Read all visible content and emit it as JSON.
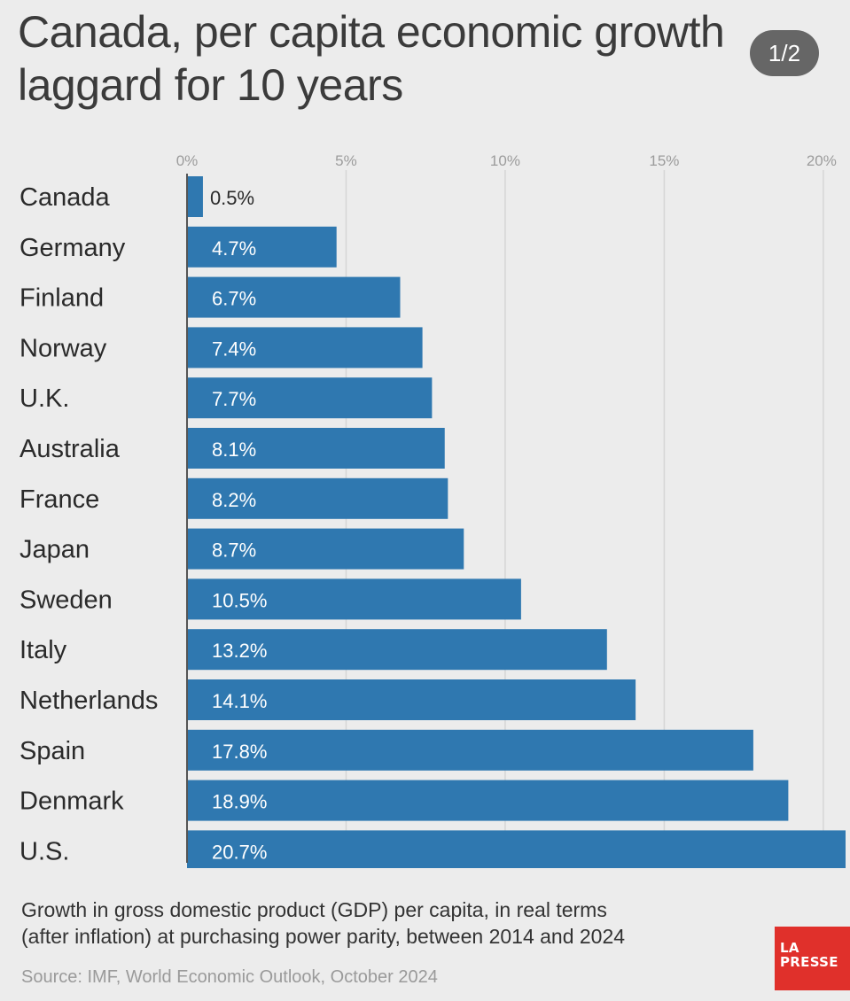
{
  "title": "Canada, per capita economic growth laggard for 10 years",
  "page_indicator": "1/2",
  "footnote": "Growth in gross domestic product (GDP) per capita, in real terms\n(after inflation) at purchasing power parity, between 2014 and 2024",
  "source": "Source: IMF, World Economic Outlook, October 2024",
  "logo": {
    "line1": "LA",
    "line2": "PRESSE"
  },
  "colors": {
    "bar": "#2f78b0",
    "background": "#ececec",
    "gridline": "#d6d6d6",
    "logo": "#e0302b"
  },
  "chart_data": {
    "type": "bar",
    "orientation": "horizontal",
    "categories": [
      "Canada",
      "Germany",
      "Finland",
      "Norway",
      "U.K.",
      "Australia",
      "France",
      "Japan",
      "Sweden",
      "Italy",
      "Netherlands",
      "Spain",
      "Denmark",
      "U.S."
    ],
    "values": [
      0.5,
      4.7,
      6.7,
      7.4,
      7.7,
      8.1,
      8.2,
      8.7,
      10.5,
      13.2,
      14.1,
      17.8,
      18.9,
      20.7
    ],
    "value_labels": [
      "0.5%",
      "4.7%",
      "6.7%",
      "7.4%",
      "7.7%",
      "8.1%",
      "8.2%",
      "8.7%",
      "10.5%",
      "13.2%",
      "14.1%",
      "17.8%",
      "18.9%",
      "20.7%"
    ],
    "x_ticks": [
      0,
      5,
      10,
      15,
      20
    ],
    "x_tick_labels": [
      "0%",
      "5%",
      "10%",
      "15%",
      "20%"
    ],
    "xlim": [
      0,
      20.7
    ],
    "grid": true,
    "legend": "none"
  }
}
